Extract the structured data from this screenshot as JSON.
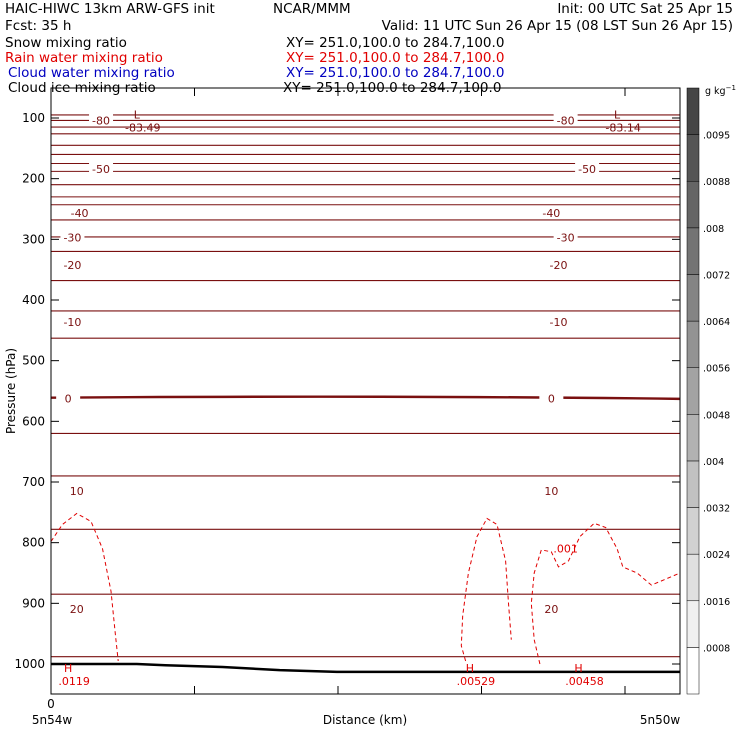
{
  "header": {
    "title_left": "HAIC-HIWC 13km ARW-GFS init",
    "org": "NCAR/MMM",
    "init": "Init: 00 UTC Sat 25 Apr 15",
    "fcst": "Fcst:   35 h",
    "valid": "Valid: 11 UTC Sun 26 Apr 15 (08 LST Sun 26 Apr 15)"
  },
  "fields": [
    {
      "name": "Snow mixing ratio",
      "xy": "XY= 251.0,100.0 to 284.7,100.0",
      "color": "#000000"
    },
    {
      "name": "Rain water mixing ratio",
      "xy": "XY= 251.0,100.0 to 284.7,100.0",
      "color": "#e00000"
    },
    {
      "name": "Cloud water mixing ratio",
      "xy": "XY= 251.0,100.0 to 284.7,100.0",
      "color": "#0000c0"
    },
    {
      "name": "Cloud ice mixing ratio",
      "xy": "XY= 251.0,100.0 to 284.7,100.0",
      "color": "#000000"
    }
  ],
  "colorbar": {
    "unit": "g kg",
    "unit_exp": "−1",
    "ticks": [
      ".0095",
      ".0088",
      ".008",
      ".0072",
      ".0064",
      ".0056",
      ".0048",
      ".004",
      ".0032",
      ".0024",
      ".0016",
      ".0008"
    ],
    "levels": [
      0.0008,
      0.0016,
      0.0024,
      0.0032,
      0.004,
      0.0048,
      0.0056,
      0.0064,
      0.0072,
      0.008,
      0.0088,
      0.0095,
      0.0102
    ]
  },
  "chart_data": {
    "type": "line",
    "ylabel": "Pressure (hPa)",
    "xlabel": "Distance (km)",
    "y_ticks": [
      100,
      200,
      300,
      400,
      500,
      600,
      700,
      800,
      900,
      1000
    ],
    "y_range_hpa": [
      1040,
      50
    ],
    "x_tick_labels": [
      {
        "x": 0,
        "label": "0"
      }
    ],
    "x_ticks": [
      0,
      1,
      2,
      3,
      4
    ],
    "x_range": [
      0,
      4.4
    ],
    "x_end_labels": {
      "left": "5n54w",
      "right": "5n50w"
    },
    "temperature_isotherms": [
      {
        "label": "-80",
        "p_left": 95,
        "p_right": 95
      },
      {
        "label": "-70",
        "p_left": 126,
        "p_right": 126
      },
      {
        "label": "-60",
        "p_left": 145,
        "p_right": 145
      },
      {
        "label": "-50",
        "p_left": 188,
        "p_right": 188
      },
      {
        "label": "-40",
        "p_left": 230,
        "p_right": 230
      },
      {
        "label": "-30",
        "p_left": 268,
        "p_right": 268
      },
      {
        "label": "-20",
        "p_left": 320,
        "p_right": 320
      },
      {
        "label": "-10",
        "p_left": 418,
        "p_right": 418
      },
      {
        "label": "0",
        "p_left": 561,
        "p_right": 563,
        "bold": true
      },
      {
        "label": "10",
        "p_left": 690,
        "p_right": 690
      },
      {
        "label": "20",
        "p_left": 885,
        "p_right": 885
      }
    ],
    "isotherm_label_positions": [
      {
        "label": "-80",
        "x": 0.35,
        "p": 104
      },
      {
        "label": "-80",
        "x": 3.6,
        "p": 104
      },
      {
        "label": "-50",
        "x": 0.35,
        "p": 184
      },
      {
        "label": "-50",
        "x": 3.75,
        "p": 184
      },
      {
        "label": "-40",
        "x": 0.2,
        "p": 257
      },
      {
        "label": "-40",
        "x": 3.5,
        "p": 257
      },
      {
        "label": "-30",
        "x": 0.15,
        "p": 297
      },
      {
        "label": "-30",
        "x": 3.6,
        "p": 297
      },
      {
        "label": "-20",
        "x": 0.15,
        "p": 342
      },
      {
        "label": "-20",
        "x": 3.55,
        "p": 342
      },
      {
        "label": "-10",
        "x": 0.15,
        "p": 436
      },
      {
        "label": "-10",
        "x": 3.55,
        "p": 436
      },
      {
        "label": "0",
        "x": 0.12,
        "p": 562
      },
      {
        "label": "0",
        "x": 3.5,
        "p": 562
      },
      {
        "label": "10",
        "x": 0.18,
        "p": 715
      },
      {
        "label": "10",
        "x": 3.5,
        "p": 715
      },
      {
        "label": "20",
        "x": 0.18,
        "p": 909
      },
      {
        "label": "20",
        "x": 3.5,
        "p": 909
      }
    ],
    "extra_isotherms_unlabeled": [
      {
        "p_left": 104.0,
        "p_right": 104
      },
      {
        "p_left": 115,
        "p_right": 115
      },
      {
        "p_left": 160,
        "p_right": 160
      },
      {
        "p_left": 175,
        "p_right": 175
      },
      {
        "p_left": 210,
        "p_right": 210
      },
      {
        "p_left": 243,
        "p_right": 243
      },
      {
        "p_left": 296,
        "p_right": 296
      },
      {
        "p_left": 368,
        "p_right": 368
      },
      {
        "p_left": 463,
        "p_right": 463
      },
      {
        "p_left": 620,
        "p_right": 620
      },
      {
        "p_left": 778,
        "p_right": 778
      },
      {
        "p_left": 988,
        "p_right": 988
      }
    ],
    "extrema_labels": [
      {
        "kind": "L",
        "value": "-83.49",
        "x": 0.6,
        "p": 78
      },
      {
        "kind": "L",
        "value": "-83.14",
        "x": 3.96,
        "p": 78
      },
      {
        "kind": "H",
        "value": ".0119",
        "x": 0.12,
        "p": 990
      },
      {
        "kind": "H",
        "value": ".00529",
        "x": 2.93,
        "p": 990
      },
      {
        "kind": "H",
        "value": ".00458",
        "x": 3.69,
        "p": 990
      }
    ],
    "rain_contour_label": {
      "value": ".001",
      "x": 3.6,
      "p": 810
    },
    "rain_contours": [
      [
        [
          0,
          798
        ],
        [
          0.08,
          770
        ],
        [
          0.18,
          752
        ],
        [
          0.28,
          765
        ],
        [
          0.36,
          810
        ],
        [
          0.42,
          880
        ],
        [
          0.45,
          950
        ],
        [
          0.47,
          995
        ]
      ],
      [
        [
          2.9,
          995
        ],
        [
          2.87,
          970
        ],
        [
          2.88,
          920
        ],
        [
          2.92,
          850
        ],
        [
          2.98,
          790
        ],
        [
          3.05,
          760
        ],
        [
          3.12,
          770
        ],
        [
          3.18,
          830
        ],
        [
          3.2,
          900
        ],
        [
          3.22,
          960
        ]
      ],
      [
        [
          3.42,
          1000
        ],
        [
          3.38,
          960
        ],
        [
          3.36,
          900
        ],
        [
          3.38,
          850
        ],
        [
          3.43,
          812
        ],
        [
          3.5,
          815
        ],
        [
          3.55,
          840
        ],
        [
          3.62,
          830
        ],
        [
          3.7,
          790
        ],
        [
          3.8,
          768
        ],
        [
          3.88,
          775
        ],
        [
          3.96,
          810
        ],
        [
          4.0,
          840
        ],
        [
          4.1,
          850
        ],
        [
          4.2,
          870
        ],
        [
          4.3,
          860
        ],
        [
          4.4,
          850
        ]
      ]
    ],
    "terrain_surface": [
      [
        0,
        1000
      ],
      [
        0.6,
        1000
      ],
      [
        0.8,
        1002
      ],
      [
        1.2,
        1005
      ],
      [
        1.6,
        1010
      ],
      [
        2.0,
        1013
      ],
      [
        3.0,
        1013
      ],
      [
        4.4,
        1013
      ]
    ]
  }
}
